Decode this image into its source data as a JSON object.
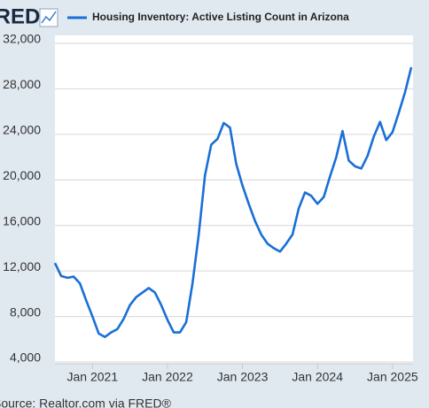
{
  "chart_data": {
    "type": "line",
    "logo": "FRED",
    "source": "Source: Realtor.com via FRED®",
    "x": [
      "2020-07",
      "2020-08",
      "2020-09",
      "2020-10",
      "2020-11",
      "2020-12",
      "2021-01",
      "2021-02",
      "2021-03",
      "2021-04",
      "2021-05",
      "2021-06",
      "2021-07",
      "2021-08",
      "2021-09",
      "2021-10",
      "2021-11",
      "2021-12",
      "2022-01",
      "2022-02",
      "2022-03",
      "2022-04",
      "2022-05",
      "2022-06",
      "2022-07",
      "2022-08",
      "2022-09",
      "2022-10",
      "2022-11",
      "2022-12",
      "2023-01",
      "2023-02",
      "2023-03",
      "2023-04",
      "2023-05",
      "2023-06",
      "2023-07",
      "2023-08",
      "2023-09",
      "2023-10",
      "2023-11",
      "2023-12",
      "2024-01",
      "2024-02",
      "2024-03",
      "2024-04",
      "2024-05",
      "2024-06",
      "2024-07",
      "2024-08",
      "2024-09",
      "2024-10",
      "2024-11",
      "2024-12",
      "2025-01",
      "2025-02",
      "2025-03",
      "2025-04"
    ],
    "series": [
      {
        "name": "Housing Inventory: Active Listing Count in Arizona",
        "color": "#1a6fd6",
        "values": [
          12700,
          11550,
          11400,
          11500,
          10900,
          9400,
          8000,
          6500,
          6200,
          6600,
          6900,
          7800,
          9000,
          9700,
          10100,
          10500,
          10100,
          9000,
          7700,
          6600,
          6600,
          7500,
          10900,
          15200,
          20400,
          23100,
          23600,
          25000,
          24600,
          21400,
          19500,
          17900,
          16400,
          15200,
          14400,
          14000,
          13700,
          14400,
          15200,
          17500,
          18900,
          18600,
          17900,
          18500,
          20300,
          22000,
          24300,
          21700,
          21200,
          21000,
          22100,
          23800,
          25100,
          23500,
          24200,
          25900,
          27700,
          29900
        ]
      }
    ],
    "xlim": [
      "2020-07",
      "2025-04"
    ],
    "xticks": [
      {
        "value": "2021-01",
        "label": "Jan 2021"
      },
      {
        "value": "2022-01",
        "label": "Jan 2022"
      },
      {
        "value": "2023-01",
        "label": "Jan 2023"
      },
      {
        "value": "2024-01",
        "label": "Jan 2024"
      },
      {
        "value": "2025-01",
        "label": "Jan 2025"
      }
    ],
    "ylim": [
      4000,
      32000
    ],
    "yticks": [
      {
        "value": 4000,
        "label": "4,000"
      },
      {
        "value": 8000,
        "label": "8,000"
      },
      {
        "value": 12000,
        "label": "12,000"
      },
      {
        "value": 16000,
        "label": "16,000"
      },
      {
        "value": 20000,
        "label": "20,000"
      },
      {
        "value": 24000,
        "label": "24,000"
      },
      {
        "value": 28000,
        "label": "28,000"
      },
      {
        "value": 32000,
        "label": "32,000"
      }
    ],
    "grid": true
  }
}
